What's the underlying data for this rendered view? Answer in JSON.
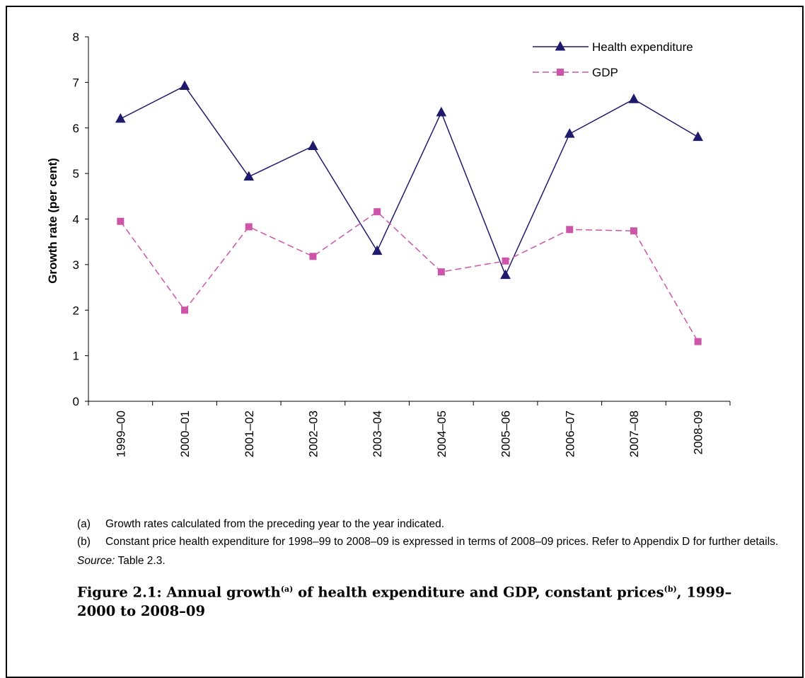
{
  "chart_data": {
    "type": "line",
    "categories": [
      "1999–00",
      "2000–01",
      "2001–02",
      "2002–03",
      "2003–04",
      "2004–05",
      "2005–06",
      "2006–07",
      "2007–08",
      "2008-09"
    ],
    "series": [
      {
        "name": "Health expenditure",
        "values": [
          6.2,
          6.92,
          4.93,
          5.6,
          3.3,
          6.34,
          2.77,
          5.87,
          6.63,
          5.8
        ],
        "color": "#1f1a6b",
        "marker": "triangle",
        "line_style": "solid"
      },
      {
        "name": "GDP",
        "values": [
          3.95,
          2.0,
          3.83,
          3.18,
          4.16,
          2.84,
          3.08,
          3.77,
          3.74,
          1.31
        ],
        "color": "#cc55aa",
        "marker": "square",
        "line_style": "dashed"
      }
    ],
    "ylabel": "Growth rate (per cent)",
    "xlabel": "",
    "ylim": [
      0,
      8
    ],
    "yticks": [
      "0",
      "1",
      "2",
      "3",
      "4",
      "5",
      "6",
      "7",
      "8"
    ],
    "grid": false,
    "legend_position": "top-right"
  },
  "notes": [
    {
      "label": "(a)",
      "text": "Growth rates calculated from the preceding year to the year indicated."
    },
    {
      "label": "(b)",
      "text": "Constant price health expenditure for 1998–99 to 2008–09 is expressed in terms of 2008–09 prices. Refer to Appendix D for further details."
    }
  ],
  "source": {
    "label": "Source:",
    "text": " Table 2.3."
  },
  "caption": {
    "part1": "Figure 2.1: Annual growth",
    "sup1": "(a)",
    "part2": " of health expenditure and GDP, constant prices",
    "sup2": "(b)",
    "part3": ", 1999–2000 to 2008–09"
  }
}
